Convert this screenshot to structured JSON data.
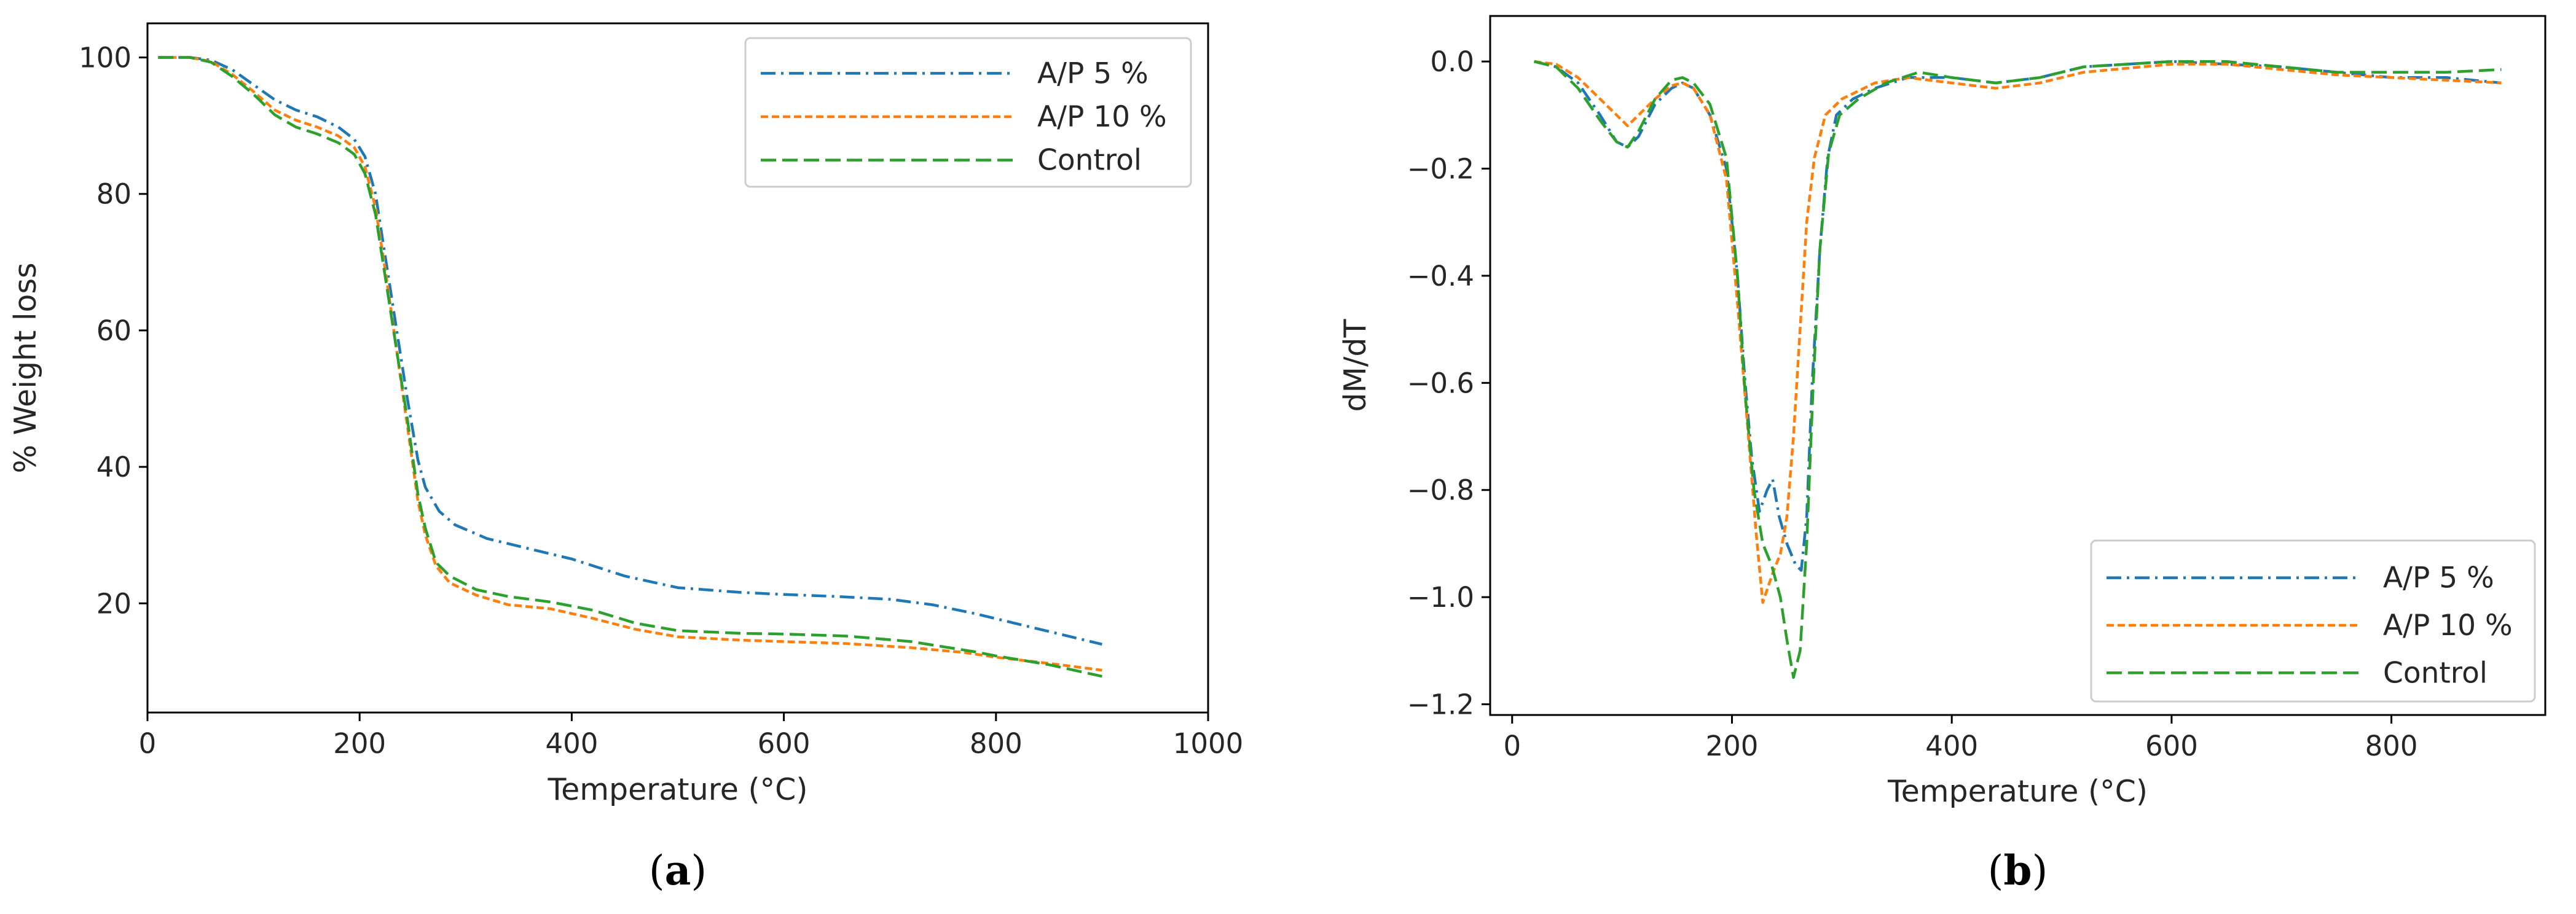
{
  "chart_data": [
    {
      "type": "line",
      "panel_label": {
        "open": "(",
        "letter": "a",
        "close": ")"
      },
      "xlabel": "Temperature (°C)",
      "ylabel": "% Weight loss",
      "xlim": [
        0,
        1000
      ],
      "ylim": [
        4,
        105
      ],
      "xticks": [
        0,
        200,
        400,
        600,
        800,
        1000
      ],
      "yticks": [
        20,
        40,
        60,
        80,
        100
      ],
      "xtick_labels": [
        "0",
        "200",
        "400",
        "600",
        "800",
        "1000"
      ],
      "ytick_labels": [
        "20",
        "40",
        "60",
        "80",
        "100"
      ],
      "grid": false,
      "legend_position": "top-right",
      "series": [
        {
          "name": "A/P 5 %",
          "color": "#1f77b4",
          "style": "dashdot",
          "points": [
            [
              10,
              100
            ],
            [
              40,
              100
            ],
            [
              60,
              99.6
            ],
            [
              80,
              98.2
            ],
            [
              100,
              96
            ],
            [
              120,
              93.8
            ],
            [
              140,
              92.3
            ],
            [
              160,
              91.3
            ],
            [
              180,
              89.8
            ],
            [
              195,
              88
            ],
            [
              205,
              85.5
            ],
            [
              215,
              80
            ],
            [
              225,
              70
            ],
            [
              235,
              60
            ],
            [
              245,
              50
            ],
            [
              255,
              41
            ],
            [
              262,
              37
            ],
            [
              275,
              33.5
            ],
            [
              290,
              31.5
            ],
            [
              320,
              29.5
            ],
            [
              360,
              28
            ],
            [
              400,
              26.5
            ],
            [
              450,
              24
            ],
            [
              500,
              22.3
            ],
            [
              560,
              21.6
            ],
            [
              600,
              21.3
            ],
            [
              650,
              21
            ],
            [
              700,
              20.6
            ],
            [
              740,
              19.8
            ],
            [
              780,
              18.5
            ],
            [
              820,
              17
            ],
            [
              860,
              15.5
            ],
            [
              900,
              14
            ]
          ]
        },
        {
          "name": "A/P 10 %",
          "color": "#ff7f0e",
          "style": "dashed-short",
          "points": [
            [
              10,
              100
            ],
            [
              40,
              100
            ],
            [
              60,
              99.4
            ],
            [
              80,
              97.5
            ],
            [
              100,
              95
            ],
            [
              120,
              92.3
            ],
            [
              140,
              90.8
            ],
            [
              160,
              89.8
            ],
            [
              180,
              88.5
            ],
            [
              195,
              86.8
            ],
            [
              205,
              84
            ],
            [
              215,
              78
            ],
            [
              225,
              68
            ],
            [
              235,
              57
            ],
            [
              245,
              46
            ],
            [
              255,
              35
            ],
            [
              262,
              30
            ],
            [
              272,
              25.5
            ],
            [
              285,
              23
            ],
            [
              310,
              21.2
            ],
            [
              340,
              19.8
            ],
            [
              380,
              19.2
            ],
            [
              420,
              17.8
            ],
            [
              460,
              16.2
            ],
            [
              500,
              15.1
            ],
            [
              560,
              14.6
            ],
            [
              600,
              14.4
            ],
            [
              660,
              14.1
            ],
            [
              720,
              13.5
            ],
            [
              770,
              12.8
            ],
            [
              800,
              12.1
            ],
            [
              850,
              11.2
            ],
            [
              900,
              10.2
            ]
          ]
        },
        {
          "name": "Control",
          "color": "#2ca02c",
          "style": "dashed-long",
          "points": [
            [
              10,
              100
            ],
            [
              40,
              100
            ],
            [
              60,
              99.3
            ],
            [
              80,
              97.2
            ],
            [
              100,
              94.6
            ],
            [
              120,
              91.6
            ],
            [
              140,
              89.8
            ],
            [
              160,
              88.8
            ],
            [
              180,
              87.5
            ],
            [
              195,
              85.8
            ],
            [
              205,
              83
            ],
            [
              215,
              77
            ],
            [
              225,
              67
            ],
            [
              235,
              57
            ],
            [
              245,
              47
            ],
            [
              255,
              36
            ],
            [
              262,
              31
            ],
            [
              272,
              26
            ],
            [
              285,
              24
            ],
            [
              310,
              22
            ],
            [
              340,
              21
            ],
            [
              380,
              20.2
            ],
            [
              420,
              19
            ],
            [
              460,
              17.1
            ],
            [
              500,
              16
            ],
            [
              560,
              15.6
            ],
            [
              600,
              15.5
            ],
            [
              660,
              15.2
            ],
            [
              720,
              14.4
            ],
            [
              780,
              12.9
            ],
            [
              800,
              12.3
            ],
            [
              850,
              11
            ],
            [
              900,
              9.3
            ]
          ]
        }
      ]
    },
    {
      "type": "line",
      "panel_label": {
        "open": "(",
        "letter": "b",
        "close": ")"
      },
      "xlabel": "Temperature (°C)",
      "ylabel": "dM/dT",
      "xlim": [
        -20,
        940
      ],
      "ylim": [
        -1.22,
        0.085
      ],
      "xticks": [
        0,
        200,
        400,
        600,
        800
      ],
      "yticks": [
        0.0,
        -0.2,
        -0.4,
        -0.6,
        -0.8,
        -1.0,
        -1.2
      ],
      "xtick_labels": [
        "0",
        "200",
        "400",
        "600",
        "800"
      ],
      "ytick_labels": [
        "0.0",
        "−0.2",
        "−0.4",
        "−0.6",
        "−0.8",
        "−1.0",
        "−1.2"
      ],
      "grid": false,
      "legend_position": "bottom-right",
      "series": [
        {
          "name": "A/P 5 %",
          "color": "#1f77b4",
          "style": "dashdot",
          "points": [
            [
              20,
              0
            ],
            [
              40,
              -0.01
            ],
            [
              60,
              -0.04
            ],
            [
              80,
              -0.1
            ],
            [
              95,
              -0.15
            ],
            [
              105,
              -0.16
            ],
            [
              115,
              -0.14
            ],
            [
              130,
              -0.08
            ],
            [
              145,
              -0.05
            ],
            [
              155,
              -0.04
            ],
            [
              165,
              -0.05
            ],
            [
              180,
              -0.1
            ],
            [
              195,
              -0.2
            ],
            [
              205,
              -0.4
            ],
            [
              212,
              -0.6
            ],
            [
              218,
              -0.74
            ],
            [
              225,
              -0.84
            ],
            [
              232,
              -0.8
            ],
            [
              237,
              -0.78
            ],
            [
              243,
              -0.85
            ],
            [
              250,
              -0.9
            ],
            [
              258,
              -0.94
            ],
            [
              263,
              -0.95
            ],
            [
              268,
              -0.85
            ],
            [
              273,
              -0.6
            ],
            [
              280,
              -0.35
            ],
            [
              287,
              -0.18
            ],
            [
              295,
              -0.1
            ],
            [
              310,
              -0.07
            ],
            [
              330,
              -0.05
            ],
            [
              360,
              -0.03
            ],
            [
              400,
              -0.03
            ],
            [
              440,
              -0.04
            ],
            [
              480,
              -0.03
            ],
            [
              520,
              -0.01
            ],
            [
              600,
              0
            ],
            [
              650,
              -0.005
            ],
            [
              700,
              -0.01
            ],
            [
              750,
              -0.02
            ],
            [
              800,
              -0.03
            ],
            [
              850,
              -0.03
            ],
            [
              900,
              -0.04
            ]
          ]
        },
        {
          "name": "A/P 10 %",
          "color": "#ff7f0e",
          "style": "dashed-short",
          "points": [
            [
              20,
              0
            ],
            [
              40,
              -0.005
            ],
            [
              60,
              -0.03
            ],
            [
              80,
              -0.07
            ],
            [
              95,
              -0.1
            ],
            [
              105,
              -0.12
            ],
            [
              115,
              -0.1
            ],
            [
              130,
              -0.07
            ],
            [
              145,
              -0.045
            ],
            [
              155,
              -0.04
            ],
            [
              165,
              -0.05
            ],
            [
              180,
              -0.1
            ],
            [
              195,
              -0.22
            ],
            [
              205,
              -0.45
            ],
            [
              215,
              -0.7
            ],
            [
              222,
              -0.88
            ],
            [
              228,
              -1.01
            ],
            [
              233,
              -0.98
            ],
            [
              238,
              -0.95
            ],
            [
              244,
              -0.92
            ],
            [
              250,
              -0.85
            ],
            [
              256,
              -0.7
            ],
            [
              262,
              -0.5
            ],
            [
              268,
              -0.3
            ],
            [
              275,
              -0.18
            ],
            [
              285,
              -0.1
            ],
            [
              300,
              -0.07
            ],
            [
              330,
              -0.04
            ],
            [
              360,
              -0.03
            ],
            [
              400,
              -0.04
            ],
            [
              440,
              -0.05
            ],
            [
              480,
              -0.04
            ],
            [
              520,
              -0.02
            ],
            [
              600,
              -0.005
            ],
            [
              650,
              -0.005
            ],
            [
              700,
              -0.015
            ],
            [
              750,
              -0.025
            ],
            [
              800,
              -0.03
            ],
            [
              850,
              -0.035
            ],
            [
              900,
              -0.04
            ]
          ]
        },
        {
          "name": "Control",
          "color": "#2ca02c",
          "style": "dashed-long",
          "points": [
            [
              20,
              0
            ],
            [
              40,
              -0.01
            ],
            [
              60,
              -0.05
            ],
            [
              80,
              -0.11
            ],
            [
              95,
              -0.15
            ],
            [
              105,
              -0.16
            ],
            [
              115,
              -0.13
            ],
            [
              130,
              -0.07
            ],
            [
              145,
              -0.035
            ],
            [
              155,
              -0.03
            ],
            [
              165,
              -0.04
            ],
            [
              180,
              -0.08
            ],
            [
              195,
              -0.18
            ],
            [
              205,
              -0.4
            ],
            [
              212,
              -0.62
            ],
            [
              220,
              -0.8
            ],
            [
              228,
              -0.9
            ],
            [
              236,
              -0.94
            ],
            [
              244,
              -1.0
            ],
            [
              250,
              -1.08
            ],
            [
              256,
              -1.15
            ],
            [
              262,
              -1.1
            ],
            [
              268,
              -0.9
            ],
            [
              274,
              -0.6
            ],
            [
              280,
              -0.35
            ],
            [
              288,
              -0.17
            ],
            [
              298,
              -0.1
            ],
            [
              315,
              -0.07
            ],
            [
              340,
              -0.04
            ],
            [
              370,
              -0.02
            ],
            [
              400,
              -0.03
            ],
            [
              440,
              -0.04
            ],
            [
              480,
              -0.03
            ],
            [
              520,
              -0.01
            ],
            [
              600,
              0
            ],
            [
              650,
              0
            ],
            [
              700,
              -0.01
            ],
            [
              750,
              -0.02
            ],
            [
              800,
              -0.02
            ],
            [
              850,
              -0.02
            ],
            [
              900,
              -0.015
            ]
          ]
        }
      ]
    }
  ]
}
